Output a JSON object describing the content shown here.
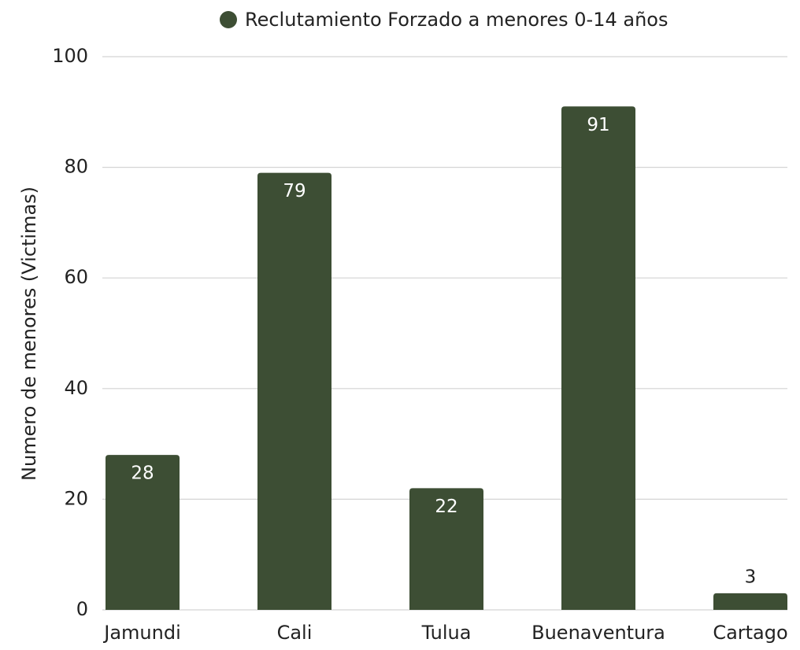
{
  "chart_data": {
    "type": "bar",
    "y_label": "Numero de menores (Victimas)",
    "categories": [
      "Jamundi",
      "Cali",
      "Tulua",
      "Buenaventura",
      "Cartago"
    ],
    "series": [
      {
        "name": "Reclutamiento Forzado a menores 0-14 años",
        "color": "#3d4e34",
        "values": [
          28,
          79,
          22,
          91,
          3
        ]
      }
    ],
    "ylim": [
      0,
      100
    ],
    "yticks": [
      0,
      20,
      40,
      60,
      80,
      100
    ],
    "grid": true,
    "legend": "top"
  }
}
